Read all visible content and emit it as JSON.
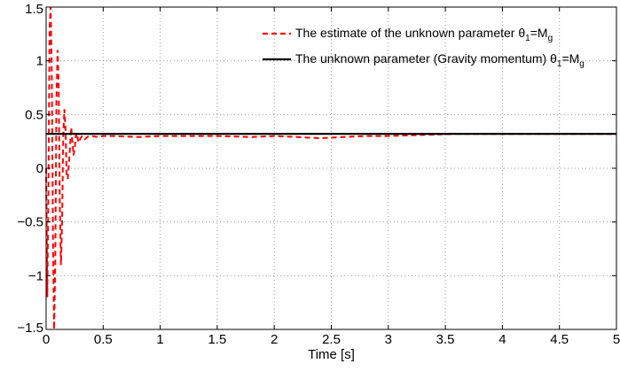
{
  "chart_data": {
    "type": "line",
    "xlabel": "Time [s]",
    "ylabel": "",
    "title": "",
    "xlim": [
      0,
      5
    ],
    "ylim": [
      -1.5,
      1.5
    ],
    "grid": true,
    "legend_position": "top-right",
    "x_ticks": [
      0,
      0.5,
      1,
      1.5,
      2,
      2.5,
      3,
      3.5,
      4,
      4.5,
      5
    ],
    "x_tick_labels": [
      "0",
      "0.5",
      "1",
      "1.5",
      "2",
      "2.5",
      "3",
      "3.5",
      "4",
      "4.5",
      "5"
    ],
    "y_ticks": [
      -1.5,
      -1,
      -0.5,
      0,
      0.5,
      1,
      1.5
    ],
    "y_tick_labels": [
      "−1.5",
      "−1",
      "−0.5",
      "0",
      "0.5",
      "1",
      "1.5"
    ],
    "series": [
      {
        "name": "The estimate of the unknown parameter θ₁=Mᵍ",
        "label_main": "The estimate of the unknown parameter θ",
        "label_sub1": "1",
        "label_mid": "=M",
        "label_sub2": "g",
        "color": "#ff0000",
        "dashed": true,
        "x": [
          0,
          0.01,
          0.02,
          0.03,
          0.04,
          0.05,
          0.06,
          0.07,
          0.08,
          0.09,
          0.1,
          0.11,
          0.12,
          0.13,
          0.14,
          0.15,
          0.16,
          0.17,
          0.18,
          0.19,
          0.2,
          0.21,
          0.22,
          0.23,
          0.24,
          0.25,
          0.26,
          0.27,
          0.28,
          0.29,
          0.3,
          0.32,
          0.34,
          0.36,
          0.38,
          0.4,
          0.45,
          0.5,
          0.6,
          0.8,
          1.0,
          1.2,
          1.5,
          1.8,
          2.0,
          2.2,
          2.4,
          2.6,
          2.8,
          3.0,
          3.3,
          3.6,
          4.0,
          4.5,
          5.0
        ],
        "y": [
          0,
          -1.2,
          -0.2,
          1.3,
          1.5,
          0.9,
          -0.6,
          -1.5,
          -0.9,
          0.6,
          1.1,
          0.8,
          -0.3,
          -0.9,
          -0.5,
          0.3,
          0.55,
          0.35,
          -0.05,
          -0.1,
          0.05,
          0.2,
          0.38,
          0.25,
          0.12,
          0.18,
          0.3,
          0.33,
          0.26,
          0.24,
          0.28,
          0.3,
          0.27,
          0.29,
          0.3,
          0.3,
          0.29,
          0.3,
          0.3,
          0.29,
          0.3,
          0.3,
          0.3,
          0.29,
          0.3,
          0.29,
          0.28,
          0.29,
          0.3,
          0.3,
          0.31,
          0.32,
          0.32,
          0.32,
          0.32
        ]
      },
      {
        "name": "The unknown parameter (Gravity momentum) θ₁=Mᵍ",
        "label_main": "The unknown parameter (Gravity momentum) θ",
        "label_sub1": "1",
        "label_mid": "=M",
        "label_sub2": "g",
        "color": "#000000",
        "dashed": false,
        "x": [
          0,
          5
        ],
        "y": [
          0.32,
          0.32
        ]
      }
    ]
  }
}
